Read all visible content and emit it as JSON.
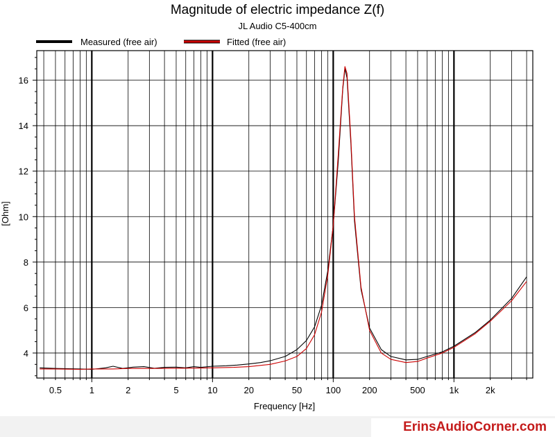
{
  "chart_data": {
    "type": "line",
    "title": "Magnitude of electric impedance Z(f)",
    "subtitle": "JL Audio C5-400cm",
    "xlabel": "Frequency [Hz]",
    "ylabel": "[Ohm]",
    "x_scale": "log",
    "xlim": [
      0.35,
      4500
    ],
    "ylim": [
      2.9,
      17.3
    ],
    "x_ticks": [
      0.5,
      1,
      2,
      5,
      10,
      20,
      50,
      100,
      200,
      500,
      1000,
      2000
    ],
    "x_tick_labels": [
      "0.5",
      "1",
      "2",
      "5",
      "10",
      "20",
      "50",
      "100",
      "200",
      "500",
      "1k",
      "2k"
    ],
    "y_ticks": [
      4,
      6,
      8,
      10,
      12,
      14,
      16
    ],
    "y_tick_labels": [
      "4",
      "6",
      "8",
      "10",
      "12",
      "14",
      "16"
    ],
    "grid": true,
    "legend_position": "top",
    "series": [
      {
        "name": "Measured (free air)",
        "color": "#000000",
        "x": [
          0.37,
          0.5,
          0.8,
          1,
          1.3,
          1.5,
          1.8,
          2.2,
          2.7,
          3.3,
          4,
          5,
          6,
          7,
          8,
          10,
          13,
          16,
          20,
          25,
          30,
          40,
          50,
          60,
          70,
          80,
          90,
          100,
          110,
          120,
          125,
          130,
          140,
          150,
          170,
          200,
          250,
          300,
          400,
          500,
          600,
          800,
          1000,
          1500,
          2000,
          3000,
          4000
        ],
        "y": [
          3.35,
          3.32,
          3.3,
          3.28,
          3.35,
          3.42,
          3.32,
          3.38,
          3.4,
          3.33,
          3.37,
          3.38,
          3.35,
          3.4,
          3.37,
          3.42,
          3.44,
          3.47,
          3.52,
          3.58,
          3.66,
          3.85,
          4.15,
          4.55,
          5.15,
          6.1,
          7.6,
          9.6,
          12.4,
          15.6,
          16.5,
          16.1,
          13.2,
          9.8,
          6.8,
          5.1,
          4.15,
          3.85,
          3.7,
          3.72,
          3.85,
          4.05,
          4.3,
          4.9,
          5.45,
          6.4,
          7.35
        ]
      },
      {
        "name": "Fitted (free air)",
        "color": "#cc0000",
        "x": [
          0.37,
          0.5,
          0.8,
          1,
          1.5,
          2,
          3,
          5,
          8,
          10,
          15,
          20,
          30,
          40,
          50,
          60,
          70,
          80,
          90,
          100,
          110,
          120,
          125,
          130,
          140,
          150,
          170,
          200,
          250,
          300,
          400,
          500,
          600,
          800,
          1000,
          1500,
          2000,
          3000,
          4000
        ],
        "y": [
          3.3,
          3.3,
          3.28,
          3.3,
          3.3,
          3.32,
          3.32,
          3.33,
          3.34,
          3.35,
          3.37,
          3.4,
          3.5,
          3.65,
          3.85,
          4.2,
          4.8,
          5.8,
          7.4,
          9.6,
          12.7,
          15.7,
          16.6,
          16.3,
          13.4,
          10.0,
          6.9,
          5.0,
          4.0,
          3.72,
          3.58,
          3.63,
          3.78,
          4.0,
          4.25,
          4.85,
          5.4,
          6.3,
          7.15
        ]
      }
    ]
  },
  "watermark": "ErinsAudioCorner.com"
}
